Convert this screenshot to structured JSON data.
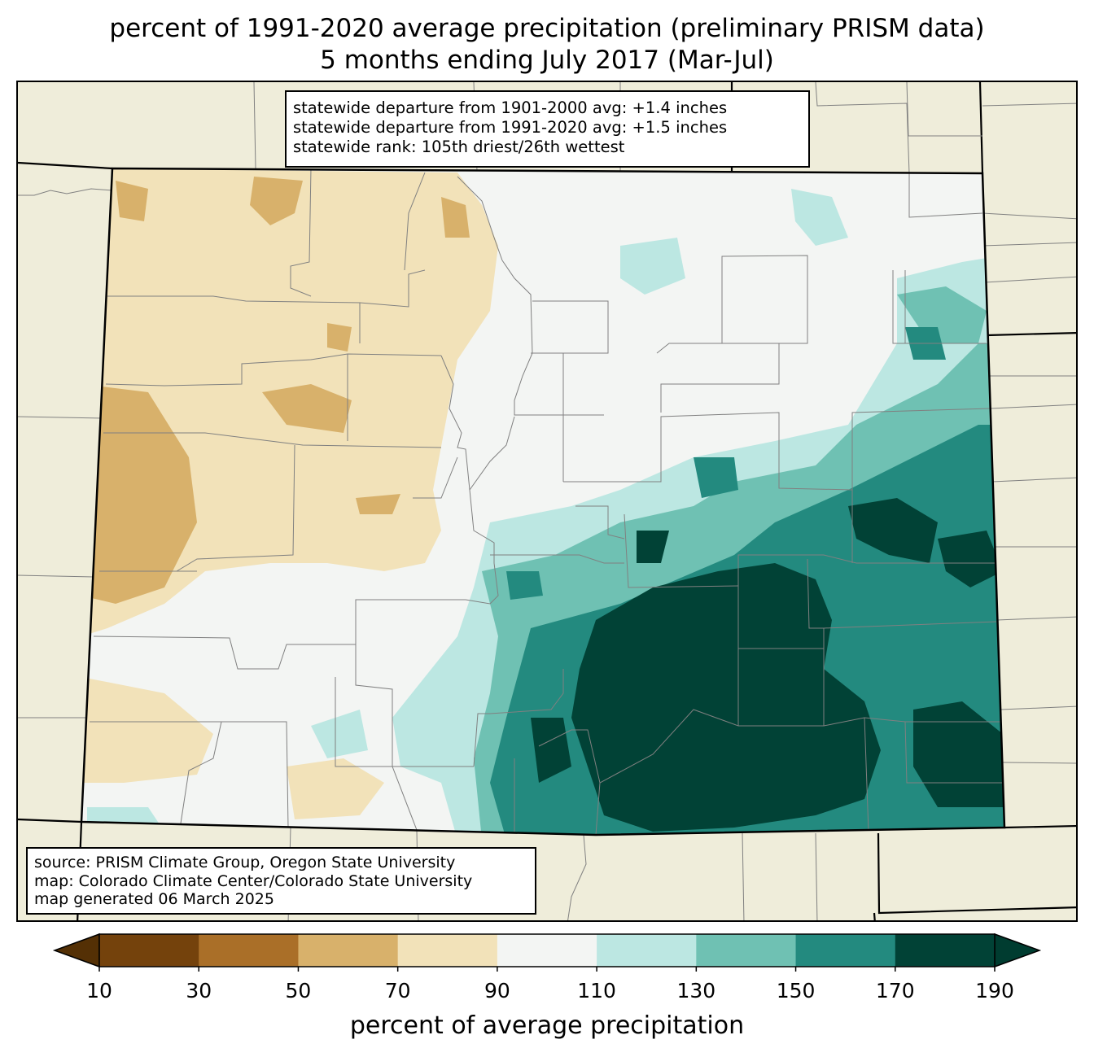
{
  "title": {
    "line1": "percent of 1991-2020 average precipitation (preliminary PRISM data)",
    "line2": "5 months ending July 2017 (Mar-Jul)"
  },
  "stats": {
    "line1": "statewide departure from 1901-2000 avg: +1.4 inches",
    "line2": "statewide departure from 1991-2020 avg: +1.5 inches",
    "line3": "statewide rank: 105th driest/26th wettest"
  },
  "source": {
    "line1": "source: PRISM Climate Group, Oregon State University",
    "line2": "map: Colorado Climate Center/Colorado State University",
    "line3": "map generated 06 March 2025"
  },
  "colorbar": {
    "label": "percent of average precipitation",
    "ticks": [
      "10",
      "30",
      "50",
      "70",
      "90",
      "110",
      "130",
      "150",
      "170",
      "190"
    ],
    "colors": [
      "#74420c",
      "#aa6f28",
      "#d8b16b",
      "#f2e2b9",
      "#f3f5f3",
      "#bce7e2",
      "#6fc1b3",
      "#238a7f",
      "#014236"
    ],
    "under_color": "#543005",
    "over_color": "#003c30"
  },
  "map": {
    "background_color": "#efedda",
    "region": "Colorado"
  }
}
